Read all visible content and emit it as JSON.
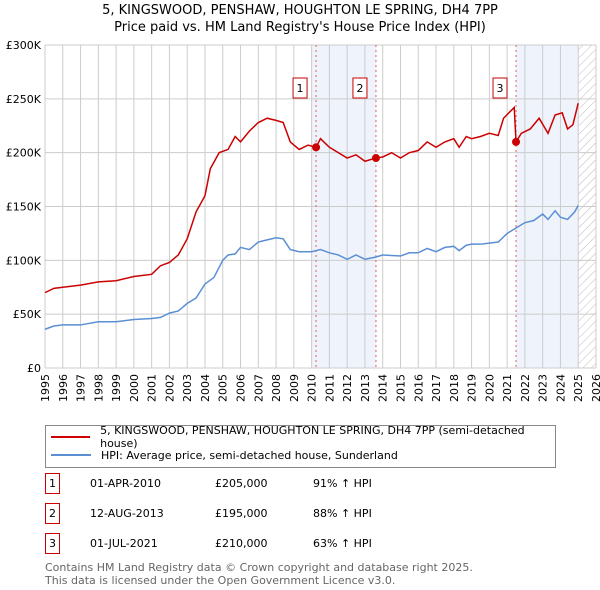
{
  "title": "5, KINGSWOOD, PENSHAW, HOUGHTON LE SPRING, DH4 7PP",
  "subtitle": "Price paid vs. HM Land Registry's House Price Index (HPI)",
  "chart_data": {
    "type": "line",
    "ylim": [
      0,
      300000
    ],
    "xlim": [
      1995,
      2026
    ],
    "yticks": [
      {
        "v": 0,
        "label": "£0"
      },
      {
        "v": 50000,
        "label": "£50K"
      },
      {
        "v": 100000,
        "label": "£100K"
      },
      {
        "v": 150000,
        "label": "£150K"
      },
      {
        "v": 200000,
        "label": "£200K"
      },
      {
        "v": 250000,
        "label": "£250K"
      },
      {
        "v": 300000,
        "label": "£300K"
      }
    ],
    "xticks": [
      "1995",
      "1996",
      "1997",
      "1998",
      "1999",
      "2000",
      "2001",
      "2002",
      "2003",
      "2004",
      "2005",
      "2006",
      "2007",
      "2008",
      "2009",
      "2010",
      "2011",
      "2012",
      "2013",
      "2014",
      "2015",
      "2016",
      "2017",
      "2018",
      "2019",
      "2020",
      "2021",
      "2022",
      "2023",
      "2024",
      "2025",
      "2026"
    ],
    "grid": true,
    "series": [
      {
        "name": "5, KINGSWOOD, PENSHAW, HOUGHTON LE SPRING, DH4 7PP (semi-detached house)",
        "color": "#cc0000",
        "x": [
          1995,
          1995.5,
          1996,
          1997,
          1998,
          1999,
          2000,
          2001,
          2001.5,
          2002,
          2002.5,
          2003,
          2003.5,
          2004,
          2004.3,
          2004.8,
          2005.3,
          2005.7,
          2006,
          2006.5,
          2007,
          2007.5,
          2008,
          2008.4,
          2008.8,
          2009.3,
          2009.8,
          2010.25,
          2010.5,
          2011,
          2011.5,
          2012,
          2012.5,
          2013,
          2013.6,
          2014,
          2014.5,
          2015,
          2015.5,
          2016,
          2016.5,
          2017,
          2017.5,
          2018,
          2018.3,
          2018.7,
          2019,
          2019.5,
          2020,
          2020.5,
          2020.8,
          2021.4,
          2021.5,
          2021.8,
          2022.3,
          2022.8,
          2023.3,
          2023.7,
          2024.1,
          2024.4,
          2024.7,
          2025
        ],
        "y": [
          70000,
          74000,
          75000,
          77000,
          80000,
          81000,
          85000,
          87000,
          95000,
          98000,
          105000,
          120000,
          145000,
          160000,
          185000,
          200000,
          203000,
          215000,
          210000,
          220000,
          228000,
          232000,
          230000,
          228000,
          210000,
          203000,
          207000,
          205000,
          213000,
          205000,
          200000,
          195000,
          198000,
          192000,
          195000,
          196000,
          200000,
          195000,
          200000,
          202000,
          210000,
          205000,
          210000,
          213000,
          205000,
          215000,
          213000,
          215000,
          218000,
          216000,
          232000,
          242000,
          210000,
          218000,
          222000,
          232000,
          218000,
          235000,
          237000,
          222000,
          226000,
          246000
        ]
      },
      {
        "name": "HPI: Average price, semi-detached house, Sunderland",
        "color": "#5b8fd4",
        "x": [
          1995,
          1995.5,
          1996,
          1997,
          1998,
          1999,
          2000,
          2001,
          2001.5,
          2002,
          2002.5,
          2003,
          2003.5,
          2004,
          2004.5,
          2005,
          2005.3,
          2005.7,
          2006,
          2006.5,
          2007,
          2007.5,
          2008,
          2008.4,
          2008.8,
          2009.3,
          2010,
          2010.5,
          2011,
          2011.5,
          2012,
          2012.5,
          2013,
          2013.6,
          2014,
          2015,
          2015.5,
          2016,
          2016.5,
          2017,
          2017.5,
          2018,
          2018.3,
          2018.7,
          2019,
          2019.5,
          2020,
          2020.5,
          2021,
          2021.5,
          2022,
          2022.5,
          2023,
          2023.3,
          2023.7,
          2024,
          2024.4,
          2024.8,
          2025
        ],
        "y": [
          36000,
          39000,
          40000,
          40000,
          43000,
          43000,
          45000,
          46000,
          47000,
          51000,
          53000,
          60000,
          65000,
          78000,
          84000,
          100000,
          105000,
          106000,
          112000,
          110000,
          117000,
          119000,
          121000,
          120000,
          110000,
          108000,
          108000,
          110000,
          107000,
          105000,
          101000,
          105000,
          101000,
          103000,
          105000,
          104000,
          107000,
          107000,
          111000,
          108000,
          112000,
          113000,
          109000,
          114000,
          115000,
          115000,
          116000,
          117000,
          125000,
          130000,
          135000,
          137000,
          143000,
          138000,
          146000,
          140000,
          138000,
          145000,
          151000
        ]
      }
    ],
    "sales": [
      {
        "n": "1",
        "x": 2010.25,
        "y": 205000
      },
      {
        "n": "2",
        "x": 2013.62,
        "y": 195000
      },
      {
        "n": "3",
        "x": 2021.5,
        "y": 210000
      }
    ],
    "shaded": [
      [
        2010,
        2013.62
      ],
      [
        2021.5,
        2025
      ]
    ],
    "hatched_from": 2025
  },
  "legend": {
    "red": "5, KINGSWOOD, PENSHAW, HOUGHTON LE SPRING, DH4 7PP (semi-detached house)",
    "blue": "HPI: Average price, semi-detached house, Sunderland"
  },
  "table": [
    {
      "n": "1",
      "date": "01-APR-2010",
      "price": "£205,000",
      "hpi": "91% ↑ HPI"
    },
    {
      "n": "2",
      "date": "12-AUG-2013",
      "price": "£195,000",
      "hpi": "88% ↑ HPI"
    },
    {
      "n": "3",
      "date": "01-JUL-2021",
      "price": "£210,000",
      "hpi": "63% ↑ HPI"
    }
  ],
  "footer": {
    "line1": "Contains HM Land Registry data © Crown copyright and database right 2025.",
    "line2": "This data is licensed under the Open Government Licence v3.0."
  }
}
